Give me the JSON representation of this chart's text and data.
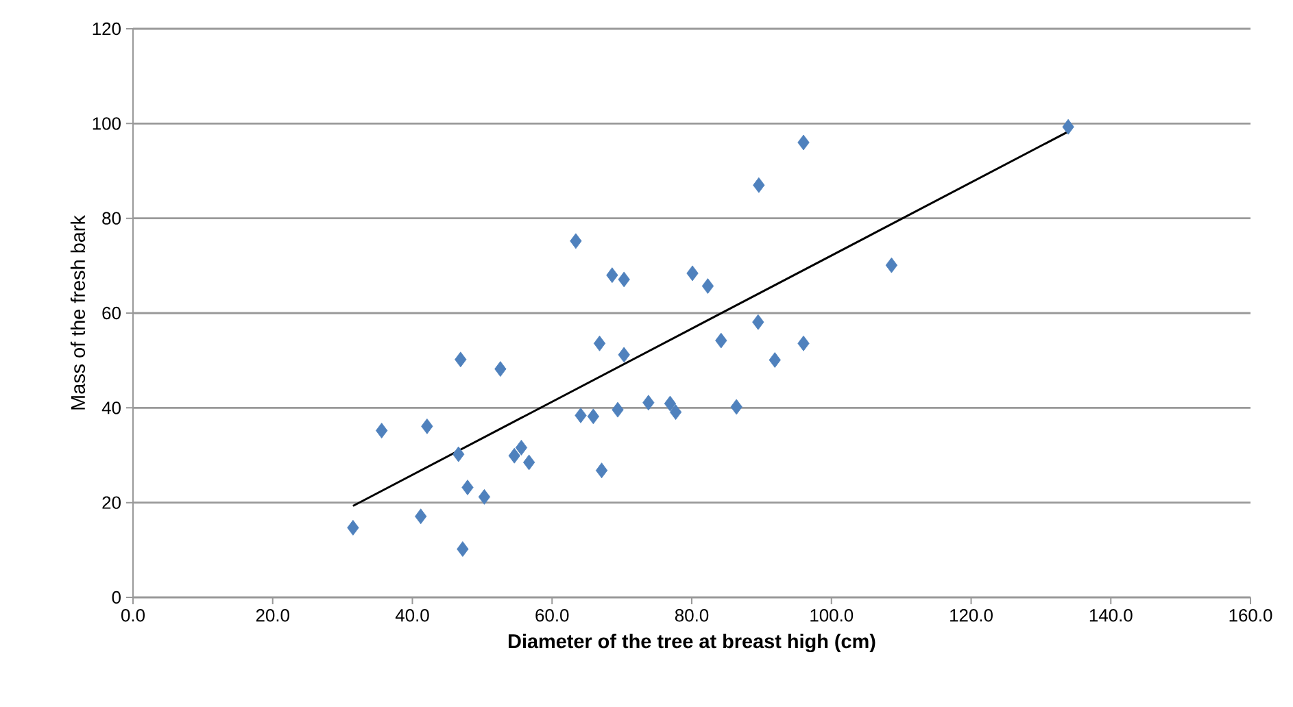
{
  "chart_data": {
    "type": "scatter",
    "xlabel": "Diameter of the tree at breast high (cm)",
    "ylabel": "Mass of the fresh bark",
    "marker": "diamond",
    "grid": "y",
    "xlim": [
      0,
      160
    ],
    "ylim": [
      0,
      120
    ],
    "xticks": [
      {
        "value": 0,
        "label": "0.0"
      },
      {
        "value": 20,
        "label": "20.0"
      },
      {
        "value": 40,
        "label": "40.0"
      },
      {
        "value": 60,
        "label": "60.0"
      },
      {
        "value": 80,
        "label": "80.0"
      },
      {
        "value": 100,
        "label": "100.0"
      },
      {
        "value": 120,
        "label": "120.0"
      },
      {
        "value": 140,
        "label": "140.0"
      },
      {
        "value": 160,
        "label": "160.0"
      }
    ],
    "yticks": [
      0,
      20,
      40,
      60,
      80,
      100,
      120
    ],
    "series": [
      {
        "color": "#4f81bd",
        "x": [
          31.5,
          35.6,
          41.2,
          42.1,
          46.9,
          46.6,
          47.9,
          47.2,
          50.3,
          52.6,
          54.6,
          55.6,
          56.7,
          63.4,
          64.1,
          65.9,
          66.8,
          67.1,
          68.6,
          70.3,
          69.4,
          70.3,
          73.8,
          76.9,
          77.7,
          80.1,
          82.3,
          84.2,
          86.4,
          89.5,
          91.9,
          89.6,
          96.0,
          108.6,
          133.9,
          96.0
        ],
        "values": [
          14.7,
          35.2,
          17.1,
          36.1,
          50.2,
          30.2,
          23.2,
          10.2,
          21.2,
          48.2,
          29.9,
          31.6,
          28.5,
          75.2,
          38.4,
          38.2,
          53.6,
          26.8,
          68.0,
          67.1,
          39.6,
          51.2,
          41.1,
          40.9,
          39.1,
          68.4,
          65.7,
          54.2,
          40.2,
          58.1,
          50.1,
          87.0,
          96.0,
          70.1,
          99.3,
          53.6
        ]
      },
      {
        "type": "line",
        "color": "#000000",
        "marker": "none",
        "x": [
          31.5,
          133.9
        ],
        "values": [
          19.3,
          98.3
        ]
      }
    ]
  }
}
